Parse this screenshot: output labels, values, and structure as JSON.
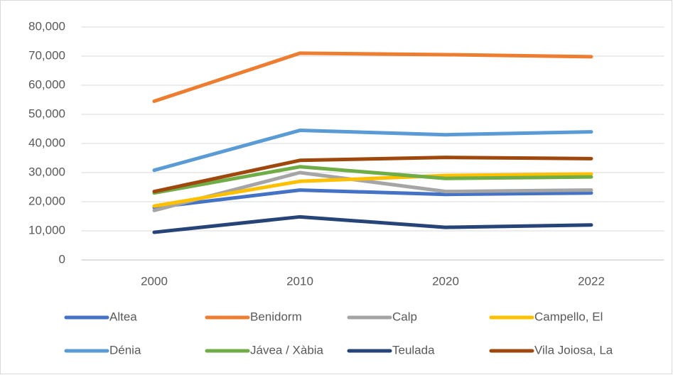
{
  "chart_data": {
    "type": "line",
    "categories": [
      "2000",
      "2010",
      "2020",
      "2022"
    ],
    "series": [
      {
        "name": "Altea",
        "color": "#4472c4",
        "values": [
          18000,
          24000,
          22500,
          23000
        ]
      },
      {
        "name": "Benidorm",
        "color": "#ed7d31",
        "values": [
          54500,
          71000,
          70500,
          69800
        ]
      },
      {
        "name": "Calp",
        "color": "#a5a5a5",
        "values": [
          17000,
          30000,
          23500,
          24000
        ]
      },
      {
        "name": "Campello, El",
        "color": "#ffc000",
        "values": [
          18500,
          27000,
          29000,
          29500
        ]
      },
      {
        "name": "Dénia",
        "color": "#5b9bd5",
        "values": [
          30800,
          44500,
          43000,
          44000
        ]
      },
      {
        "name": "Jávea / Xàbia",
        "color": "#70ad47",
        "values": [
          23000,
          32000,
          28000,
          28500
        ]
      },
      {
        "name": "Teulada",
        "color": "#264478",
        "values": [
          9500,
          14800,
          11200,
          12000
        ]
      },
      {
        "name": "Vila Joiosa, La",
        "color": "#9e480e",
        "values": [
          23500,
          34200,
          35200,
          34800
        ]
      }
    ],
    "ylim": [
      0,
      80000
    ],
    "yticks": [
      0,
      {
        "value": 10000,
        "label": "10,000"
      },
      {
        "value": 20000,
        "label": "20,000"
      },
      {
        "value": 30000,
        "label": "30,000"
      },
      {
        "value": 40000,
        "label": "40,000"
      },
      {
        "value": 50000,
        "label": "50,000"
      },
      {
        "value": 60000,
        "label": "60,000"
      },
      {
        "value": 70000,
        "label": "70,000"
      },
      {
        "value": 80000,
        "label": "80,000"
      }
    ],
    "grid": true,
    "legend": "bottom"
  }
}
